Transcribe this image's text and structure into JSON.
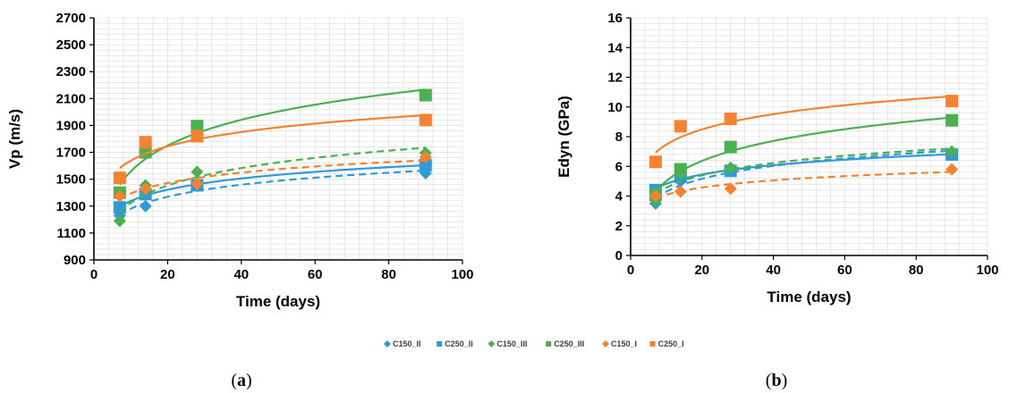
{
  "colors": {
    "blue": "#2e9bd6",
    "green": "#4caf50",
    "orange": "#f58231",
    "grid": "#d9d9d9"
  },
  "legend": [
    {
      "name": "C150_II",
      "color": "#2e9bd6",
      "marker": "diamond"
    },
    {
      "name": "C250_II",
      "color": "#2e9bd6",
      "marker": "square"
    },
    {
      "name": "C150_III",
      "color": "#4caf50",
      "marker": "diamond"
    },
    {
      "name": "C250_III",
      "color": "#4caf50",
      "marker": "square"
    },
    {
      "name": "C150_I",
      "color": "#f58231",
      "marker": "diamond"
    },
    {
      "name": "C250_I",
      "color": "#f58231",
      "marker": "square"
    }
  ],
  "panel_labels": {
    "a": {
      "open": "(",
      "letter": "a",
      "close": ")"
    },
    "b": {
      "open": "(",
      "letter": "b",
      "close": ")"
    }
  },
  "chart_data": [
    {
      "id": "a",
      "type": "scatter",
      "xlabel": "Time (days)",
      "ylabel": "Vp (m/s)",
      "xlim": [
        0,
        100
      ],
      "ylim": [
        900,
        2700
      ],
      "xticks": [
        0,
        20,
        40,
        60,
        80,
        100
      ],
      "yticks": [
        900,
        1100,
        1300,
        1500,
        1700,
        1900,
        2100,
        2300,
        2500,
        2700
      ],
      "grid": true,
      "trendlines": "logarithmic",
      "series": [
        {
          "name": "C150_II",
          "color": "#2e9bd6",
          "marker": "diamond",
          "trend": "dashed",
          "x": [
            7,
            14,
            28,
            90
          ],
          "y": [
            1230,
            1300,
            1460,
            1545
          ]
        },
        {
          "name": "C250_II",
          "color": "#2e9bd6",
          "marker": "square",
          "trend": "solid",
          "x": [
            7,
            14,
            28,
            90
          ],
          "y": [
            1290,
            1390,
            1455,
            1605
          ]
        },
        {
          "name": "C150_III",
          "color": "#4caf50",
          "marker": "diamond",
          "trend": "dashed",
          "x": [
            7,
            14,
            28,
            90
          ],
          "y": [
            1190,
            1455,
            1555,
            1695
          ]
        },
        {
          "name": "C250_III",
          "color": "#4caf50",
          "marker": "square",
          "trend": "solid",
          "x": [
            7,
            14,
            28,
            90
          ],
          "y": [
            1400,
            1700,
            1895,
            2125
          ]
        },
        {
          "name": "C150_I",
          "color": "#f58231",
          "marker": "diamond",
          "trend": "dashed",
          "x": [
            7,
            14,
            28,
            90
          ],
          "y": [
            1375,
            1430,
            1465,
            1665
          ]
        },
        {
          "name": "C250_I",
          "color": "#f58231",
          "marker": "square",
          "trend": "solid",
          "x": [
            7,
            14,
            28,
            90
          ],
          "y": [
            1510,
            1775,
            1820,
            1940
          ]
        }
      ]
    },
    {
      "id": "b",
      "type": "scatter",
      "xlabel": "Time (days)",
      "ylabel": "Edyn (GPa)",
      "xlim": [
        0,
        100
      ],
      "ylim": [
        0,
        16
      ],
      "xticks": [
        0,
        20,
        40,
        60,
        80,
        100
      ],
      "yticks": [
        0,
        2,
        4,
        6,
        8,
        10,
        12,
        14,
        16
      ],
      "grid": true,
      "trendlines": "logarithmic",
      "series": [
        {
          "name": "C150_II",
          "color": "#2e9bd6",
          "marker": "diamond",
          "trend": "dashed",
          "x": [
            7,
            14,
            28,
            90
          ],
          "y": [
            3.5,
            5.0,
            5.9,
            6.8
          ]
        },
        {
          "name": "C250_II",
          "color": "#2e9bd6",
          "marker": "square",
          "trend": "solid",
          "x": [
            7,
            14,
            28,
            90
          ],
          "y": [
            4.4,
            5.3,
            5.7,
            6.8
          ]
        },
        {
          "name": "C150_III",
          "color": "#4caf50",
          "marker": "diamond",
          "trend": "dashed",
          "x": [
            7,
            14,
            28,
            90
          ],
          "y": [
            3.7,
            5.5,
            5.9,
            7.0
          ]
        },
        {
          "name": "C250_III",
          "color": "#4caf50",
          "marker": "square",
          "trend": "solid",
          "x": [
            7,
            14,
            28,
            90
          ],
          "y": [
            4.1,
            5.8,
            7.3,
            9.1
          ]
        },
        {
          "name": "C150_I",
          "color": "#f58231",
          "marker": "diamond",
          "trend": "dashed",
          "x": [
            7,
            14,
            28,
            90
          ],
          "y": [
            4.0,
            4.3,
            4.5,
            5.8
          ]
        },
        {
          "name": "C250_I",
          "color": "#f58231",
          "marker": "square",
          "trend": "solid",
          "x": [
            7,
            14,
            28,
            90
          ],
          "y": [
            6.3,
            8.7,
            9.2,
            10.4
          ]
        }
      ]
    }
  ]
}
